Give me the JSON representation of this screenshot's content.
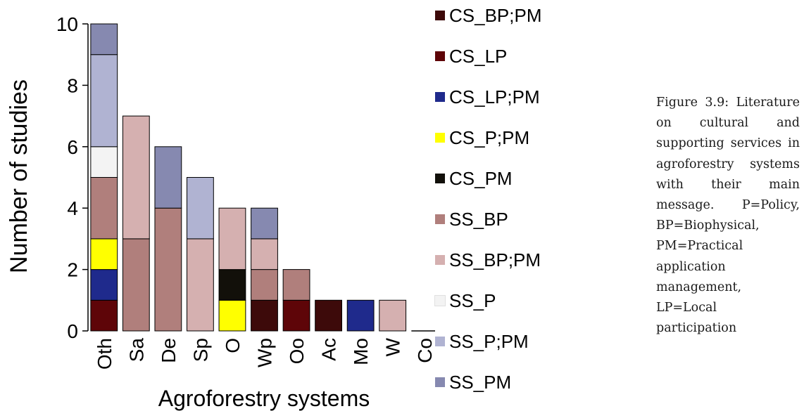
{
  "chart_data": {
    "type": "bar",
    "stacked": true,
    "xlabel": "Agroforestry systems",
    "ylabel": "Number of studies",
    "ylim": [
      0,
      10
    ],
    "yticks": [
      "0",
      "2",
      "4",
      "6",
      "8",
      "10"
    ],
    "categories": [
      "Oth",
      "Sa",
      "De",
      "Sp",
      "O",
      "Wp",
      "Oo",
      "Ac",
      "Mo",
      "W",
      "Co"
    ],
    "series": [
      {
        "name": "CS_BP;PM",
        "color": "#3d0a0a",
        "values": [
          0,
          0,
          0,
          0,
          0,
          1,
          0,
          1,
          0,
          0,
          0
        ]
      },
      {
        "name": "CS_LP",
        "color": "#5e0508",
        "values": [
          1,
          0,
          0,
          0,
          0,
          0,
          1,
          0,
          0,
          0,
          0
        ]
      },
      {
        "name": "CS_LP;PM",
        "color": "#1f2a8c",
        "values": [
          1,
          0,
          0,
          0,
          0,
          0,
          0,
          0,
          1,
          0,
          0
        ]
      },
      {
        "name": "CS_P;PM",
        "color": "#ffff00",
        "values": [
          1,
          0,
          0,
          0,
          1,
          0,
          0,
          0,
          0,
          0,
          0
        ]
      },
      {
        "name": "CS_PM",
        "color": "#12100a",
        "values": [
          0,
          0,
          0,
          0,
          1,
          0,
          0,
          0,
          0,
          0,
          0
        ]
      },
      {
        "name": "SS_BP",
        "color": "#b07f7c",
        "values": [
          2,
          3,
          4,
          0,
          0,
          1,
          1,
          0,
          0,
          0,
          0
        ]
      },
      {
        "name": "SS_BP;PM",
        "color": "#d5b0b0",
        "values": [
          0,
          4,
          0,
          3,
          2,
          1,
          0,
          0,
          0,
          1,
          0
        ]
      },
      {
        "name": "SS_P",
        "color": "#f3f3f3",
        "values": [
          1,
          0,
          0,
          0,
          0,
          0,
          0,
          0,
          0,
          0,
          0
        ]
      },
      {
        "name": "SS_P;PM",
        "color": "#b0b3d2",
        "values": [
          3,
          0,
          0,
          2,
          0,
          0,
          0,
          0,
          0,
          0,
          0
        ]
      },
      {
        "name": "SS_PM",
        "color": "#8689b0",
        "values": [
          1,
          0,
          2,
          0,
          0,
          1,
          0,
          0,
          0,
          0,
          0
        ]
      }
    ]
  },
  "caption": "Figure 3.9: Literature on cultural and supporting services in agroforestry systems with their main message. P=Policy, BP=Biophysical, PM=Practical application management, LP=Local participation"
}
